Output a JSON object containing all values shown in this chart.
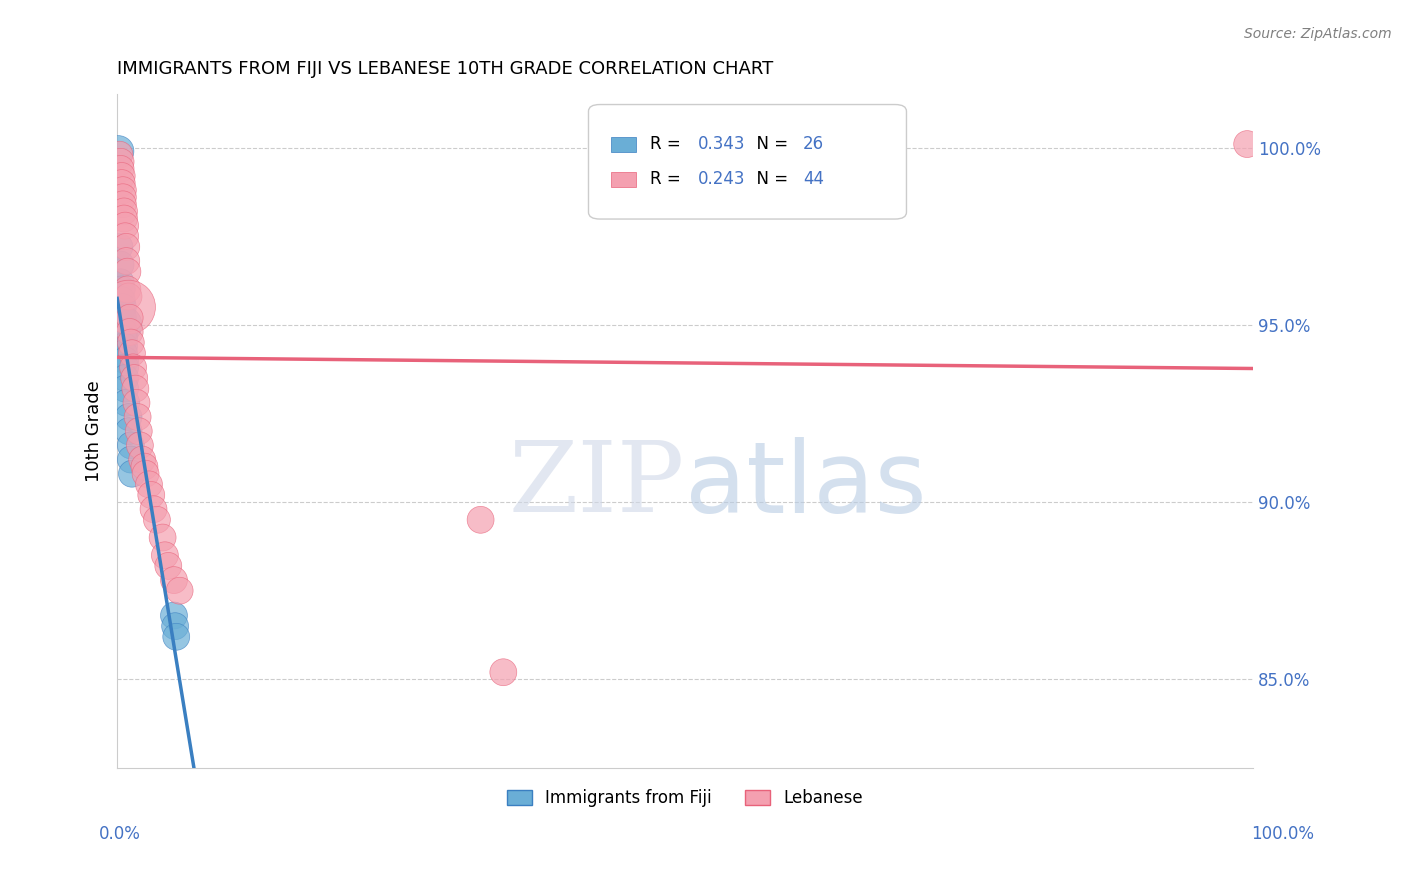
{
  "title": "IMMIGRANTS FROM FIJI VS LEBANESE 10TH GRADE CORRELATION CHART",
  "source": "Source: ZipAtlas.com",
  "ylabel": "10th Grade",
  "ylabel_right_ticks": [
    "85.0%",
    "90.0%",
    "95.0%",
    "100.0%"
  ],
  "ylabel_right_values": [
    0.85,
    0.9,
    0.95,
    1.0
  ],
  "xlim": [
    0.0,
    1.0
  ],
  "ylim": [
    0.825,
    1.015
  ],
  "fiji_R": 0.343,
  "fiji_N": 26,
  "lebanese_R": 0.243,
  "lebanese_N": 44,
  "fiji_color": "#6aaed6",
  "lebanese_color": "#f4a0b0",
  "fiji_line_color": "#3a7fc1",
  "lebanese_line_color": "#e8627a",
  "fiji_scatter_x": [
    0.001,
    0.002,
    0.003,
    0.003,
    0.004,
    0.004,
    0.005,
    0.005,
    0.005,
    0.006,
    0.006,
    0.006,
    0.006,
    0.007,
    0.007,
    0.007,
    0.007,
    0.008,
    0.01,
    0.01,
    0.012,
    0.012,
    0.013,
    0.05,
    0.051,
    0.052
  ],
  "fiji_scatter_y": [
    0.999,
    0.972,
    0.967,
    0.962,
    0.96,
    0.957,
    0.955,
    0.952,
    0.95,
    0.948,
    0.946,
    0.944,
    0.942,
    0.94,
    0.938,
    0.935,
    0.932,
    0.928,
    0.924,
    0.92,
    0.916,
    0.912,
    0.908,
    0.868,
    0.865,
    0.862
  ],
  "fiji_scatter_size": [
    20,
    15,
    15,
    15,
    15,
    15,
    15,
    15,
    30,
    15,
    15,
    15,
    15,
    15,
    15,
    15,
    15,
    15,
    15,
    15,
    15,
    15,
    15,
    15,
    15,
    15
  ],
  "lebanese_scatter_x": [
    0.002,
    0.003,
    0.003,
    0.004,
    0.004,
    0.005,
    0.005,
    0.005,
    0.006,
    0.006,
    0.007,
    0.007,
    0.008,
    0.008,
    0.009,
    0.009,
    0.01,
    0.01,
    0.011,
    0.011,
    0.012,
    0.013,
    0.014,
    0.015,
    0.016,
    0.017,
    0.018,
    0.019,
    0.02,
    0.022,
    0.024,
    0.025,
    0.028,
    0.03,
    0.032,
    0.035,
    0.04,
    0.042,
    0.045,
    0.05,
    0.055,
    0.32,
    0.34,
    0.995
  ],
  "lebanese_scatter_y": [
    0.998,
    0.996,
    0.994,
    0.992,
    0.99,
    0.988,
    0.986,
    0.984,
    0.982,
    0.98,
    0.978,
    0.975,
    0.972,
    0.968,
    0.965,
    0.96,
    0.958,
    0.955,
    0.952,
    0.948,
    0.945,
    0.942,
    0.938,
    0.935,
    0.932,
    0.928,
    0.924,
    0.92,
    0.916,
    0.912,
    0.91,
    0.908,
    0.905,
    0.902,
    0.898,
    0.895,
    0.89,
    0.885,
    0.882,
    0.878,
    0.875,
    0.895,
    0.852,
    1.001
  ],
  "lebanese_scatter_size": [
    15,
    15,
    15,
    15,
    15,
    15,
    15,
    15,
    15,
    15,
    15,
    15,
    15,
    15,
    15,
    15,
    15,
    60,
    15,
    15,
    15,
    15,
    15,
    15,
    15,
    15,
    15,
    15,
    15,
    15,
    15,
    15,
    15,
    15,
    15,
    15,
    15,
    15,
    15,
    15,
    15,
    15,
    15,
    15
  ],
  "legend_fiji_label": "Immigrants from Fiji",
  "legend_lebanese_label": "Lebanese",
  "watermark_zip_color": "#d0d8e8",
  "watermark_atlas_color": "#b8cce4",
  "accent_color": "#4472c4"
}
